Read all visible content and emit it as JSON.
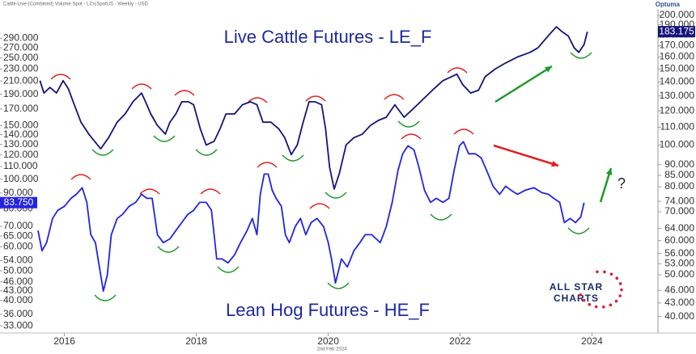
{
  "chart_data": {
    "type": "line",
    "source": "Cattle-Live-(Combined) Volume Spot - LC\\cSpotUS - Weekly - USD",
    "brand": "Optuma",
    "date_note": "2nd Feb 2024",
    "logo_text": [
      "ALL STAR",
      "CHARTS"
    ],
    "annotation": "?",
    "ylog": true,
    "y2log": true,
    "grid": false,
    "xlim": [
      2015.6,
      2025
    ],
    "xticks": [
      2016,
      2018,
      2020,
      2022,
      2024
    ],
    "ylim": [
      30.5,
      360
    ],
    "yticks": [
      {
        "value": 33,
        "label": "33.000"
      },
      {
        "value": 36,
        "label": "36.000"
      },
      {
        "value": 40,
        "label": "40.000"
      },
      {
        "value": 43,
        "label": "43.000"
      },
      {
        "value": 46,
        "label": "46.000"
      },
      {
        "value": 50,
        "label": "50.000"
      },
      {
        "value": 54,
        "label": "54.000"
      },
      {
        "value": 60,
        "label": "60.000"
      },
      {
        "value": 65,
        "label": "65.000"
      },
      {
        "value": 70,
        "label": "70.000"
      },
      {
        "value": 80,
        "label": "80.000"
      },
      {
        "value": 90,
        "label": "90.000"
      },
      {
        "value": 100,
        "label": "100.000"
      },
      {
        "value": 110,
        "label": "110.000"
      },
      {
        "value": 120,
        "label": "120.000"
      },
      {
        "value": 130,
        "label": "130.000"
      },
      {
        "value": 140,
        "label": "140.000"
      },
      {
        "value": 150,
        "label": "150.000"
      },
      {
        "value": 170,
        "label": "170.000"
      },
      {
        "value": 190,
        "label": "190.000"
      },
      {
        "value": 210,
        "label": "210.000"
      },
      {
        "value": 230,
        "label": "230.000"
      },
      {
        "value": 250,
        "label": "250.000"
      },
      {
        "value": 270,
        "label": "270.000"
      },
      {
        "value": 290,
        "label": "290.000"
      }
    ],
    "y2lim": [
      36,
      206
    ],
    "y2ticks": [
      {
        "value": 40,
        "label": "40.000"
      },
      {
        "value": 43,
        "label": "43.000"
      },
      {
        "value": 46,
        "label": "46.000"
      },
      {
        "value": 50,
        "label": "50.000"
      },
      {
        "value": 53,
        "label": "53.000"
      },
      {
        "value": 56,
        "label": "56.000"
      },
      {
        "value": 60,
        "label": "60.000"
      },
      {
        "value": 64,
        "label": "64.000"
      },
      {
        "value": 70,
        "label": "70.000"
      },
      {
        "value": 74,
        "label": "74.000"
      },
      {
        "value": 80,
        "label": "80.000"
      },
      {
        "value": 85,
        "label": "85.000"
      },
      {
        "value": 90,
        "label": "90.000"
      },
      {
        "value": 100,
        "label": "100.000"
      },
      {
        "value": 110,
        "label": "110.000"
      },
      {
        "value": 120,
        "label": "120.000"
      },
      {
        "value": 130,
        "label": "130.000"
      },
      {
        "value": 140,
        "label": "140.000"
      },
      {
        "value": 150,
        "label": "150.000"
      },
      {
        "value": 160,
        "label": "160.000"
      },
      {
        "value": 170,
        "label": "170.000"
      },
      {
        "value": 180,
        "label": "180.000"
      },
      {
        "value": 190,
        "label": "190.000"
      },
      {
        "value": 200,
        "label": "200.000"
      }
    ],
    "series": [
      {
        "name": "Live Cattle Futures - LE_F",
        "color": "#14147a",
        "axis": "y2",
        "last_label": "183.175",
        "x": [
          2015.63,
          2015.69,
          2015.78,
          2015.88,
          2015.98,
          2016.06,
          2016.15,
          2016.25,
          2016.37,
          2016.55,
          2016.67,
          2016.8,
          2016.92,
          2017.04,
          2017.17,
          2017.23,
          2017.31,
          2017.41,
          2017.53,
          2017.6,
          2017.69,
          2017.78,
          2017.88,
          2017.96,
          2018.06,
          2018.15,
          2018.27,
          2018.36,
          2018.45,
          2018.58,
          2018.7,
          2018.82,
          2018.92,
          2019.01,
          2019.13,
          2019.25,
          2019.34,
          2019.44,
          2019.53,
          2019.62,
          2019.71,
          2019.8,
          2019.9,
          2019.96,
          2020.02,
          2020.09,
          2020.17,
          2020.27,
          2020.39,
          2020.52,
          2020.64,
          2020.76,
          2020.88,
          2021.01,
          2021.15,
          2021.28,
          2021.4,
          2021.58,
          2021.74,
          2021.87,
          2021.95,
          2022.04,
          2022.16,
          2022.28,
          2022.38,
          2022.53,
          2022.69,
          2022.87,
          2023.06,
          2023.18,
          2023.36,
          2023.46,
          2023.55,
          2023.64,
          2023.73,
          2023.8,
          2023.88,
          2023.93
        ],
        "values": [
          141,
          132,
          136,
          132,
          141,
          135,
          124,
          113,
          106,
          98,
          104,
          113,
          118,
          126,
          132,
          126,
          118,
          111,
          106,
          113,
          118,
          126,
          126,
          124,
          109,
          100,
          102,
          109,
          118,
          118,
          124,
          126,
          124,
          113,
          113,
          109,
          104,
          95,
          100,
          113,
          126,
          126,
          124,
          109,
          89,
          79,
          86,
          100,
          104,
          106,
          111,
          114,
          116,
          124,
          116,
          121,
          126,
          134,
          141,
          144,
          146,
          138,
          132,
          134,
          144,
          150,
          155,
          160,
          164,
          168,
          181,
          188,
          183,
          179,
          168,
          164,
          171,
          183.175
        ]
      },
      {
        "name": "Lean Hog Futures - HE_F",
        "color": "#2424e0",
        "axis": "y",
        "last_label": "83.750",
        "x": [
          2015.6,
          2015.66,
          2015.73,
          2015.82,
          2015.9,
          2016.0,
          2016.1,
          2016.18,
          2016.27,
          2016.34,
          2016.4,
          2016.47,
          2016.53,
          2016.59,
          2016.65,
          2016.71,
          2016.8,
          2016.88,
          2016.98,
          2017.08,
          2017.17,
          2017.25,
          2017.33,
          2017.41,
          2017.5,
          2017.6,
          2017.69,
          2017.78,
          2017.87,
          2017.96,
          2018.05,
          2018.15,
          2018.23,
          2018.31,
          2018.39,
          2018.48,
          2018.58,
          2018.67,
          2018.77,
          2018.85,
          2018.92,
          2018.97,
          2019.03,
          2019.09,
          2019.15,
          2019.21,
          2019.29,
          2019.35,
          2019.41,
          2019.5,
          2019.58,
          2019.66,
          2019.74,
          2019.83,
          2019.93,
          2020.0,
          2020.05,
          2020.11,
          2020.2,
          2020.29,
          2020.39,
          2020.48,
          2020.56,
          2020.66,
          2020.79,
          2020.88,
          2020.97,
          2021.06,
          2021.13,
          2021.21,
          2021.3,
          2021.37,
          2021.46,
          2021.55,
          2021.64,
          2021.74,
          2021.83,
          2021.91,
          2021.99,
          2022.05,
          2022.13,
          2022.23,
          2022.32,
          2022.4,
          2022.5,
          2022.6,
          2022.69,
          2022.77,
          2022.87,
          2022.99,
          2023.12,
          2023.24,
          2023.34,
          2023.42,
          2023.51,
          2023.58,
          2023.67,
          2023.75,
          2023.83,
          2023.88
        ],
        "values": [
          67.8,
          58.2,
          61.9,
          74.3,
          79.0,
          81.4,
          86.5,
          89.2,
          93.7,
          83.9,
          65.7,
          61.9,
          51.5,
          42.9,
          48.4,
          65.7,
          74.3,
          76.6,
          81.4,
          83.9,
          89.2,
          86.5,
          86.5,
          65.7,
          61.9,
          63.7,
          67.8,
          72.0,
          76.6,
          79.0,
          83.9,
          83.9,
          79.0,
          54.7,
          54.7,
          53.1,
          56.4,
          61.9,
          67.8,
          74.3,
          65.7,
          89.2,
          103.9,
          103.9,
          92.0,
          86.5,
          81.4,
          65.7,
          61.9,
          69.9,
          74.3,
          65.7,
          72.0,
          74.3,
          69.9,
          61.9,
          54.7,
          45.6,
          54.7,
          51.5,
          58.2,
          61.9,
          65.7,
          65.7,
          61.9,
          69.9,
          83.9,
          107.1,
          121.1,
          128.7,
          124.8,
          110.5,
          92.0,
          83.9,
          86.5,
          83.9,
          86.5,
          107.1,
          128.7,
          132.7,
          121.1,
          121.1,
          117.4,
          107.1,
          94.8,
          89.2,
          94.8,
          92.0,
          89.2,
          92.0,
          93.7,
          90.3,
          89.2,
          86.5,
          83.9,
          72.0,
          74.3,
          72.0,
          75.2,
          83.75
        ]
      }
    ]
  }
}
